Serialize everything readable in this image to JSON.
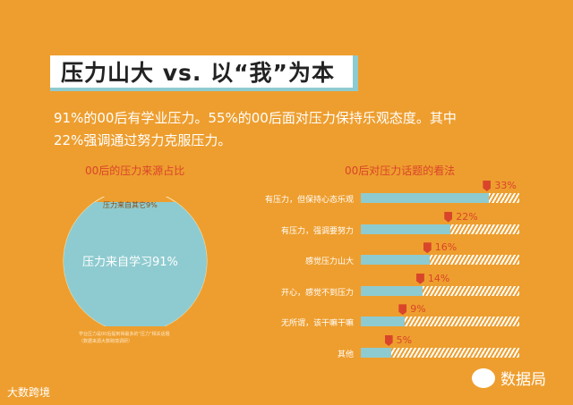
{
  "title": "压力山大 vs. 以“我”为本",
  "subtitle": [
    "91%的00后有学业压力。55%的00后面对压力保持乐观态度。其中",
    "22%强调通过努力克服压力。"
  ],
  "chart_data": [
    {
      "type": "pie",
      "title": "00后的压力来源占比",
      "slices": [
        {
          "label": "压力来自学习91%",
          "value": 91
        },
        {
          "label": "压力来自其它9%",
          "value": 9
        }
      ],
      "colors": [
        "#8ECBD0",
        "#EE9E2E"
      ]
    },
    {
      "type": "bar",
      "title": "00后对压力话题的看法",
      "categories": [
        "有压力，但保持心态乐观",
        "有压力，强调要努力",
        "感觉压力山大",
        "开心，感觉不到压力",
        "无所谓，该干嘛干嘛",
        "其他"
      ],
      "values": [
        33,
        22,
        16,
        14,
        9,
        5
      ],
      "value_labels": [
        "33%",
        "22%",
        "16%",
        "14%",
        "9%",
        "5%"
      ],
      "colors": {
        "fill": "#8ECBD0",
        "marker": "#D9452B"
      }
    }
  ],
  "note": [
    "学业压力是00后提到得最多的“压力”相关话题",
    "（数据来源大数跨境调研）"
  ],
  "footer": {
    "left_logo": "大数跨境",
    "right_logo": "数据局"
  }
}
